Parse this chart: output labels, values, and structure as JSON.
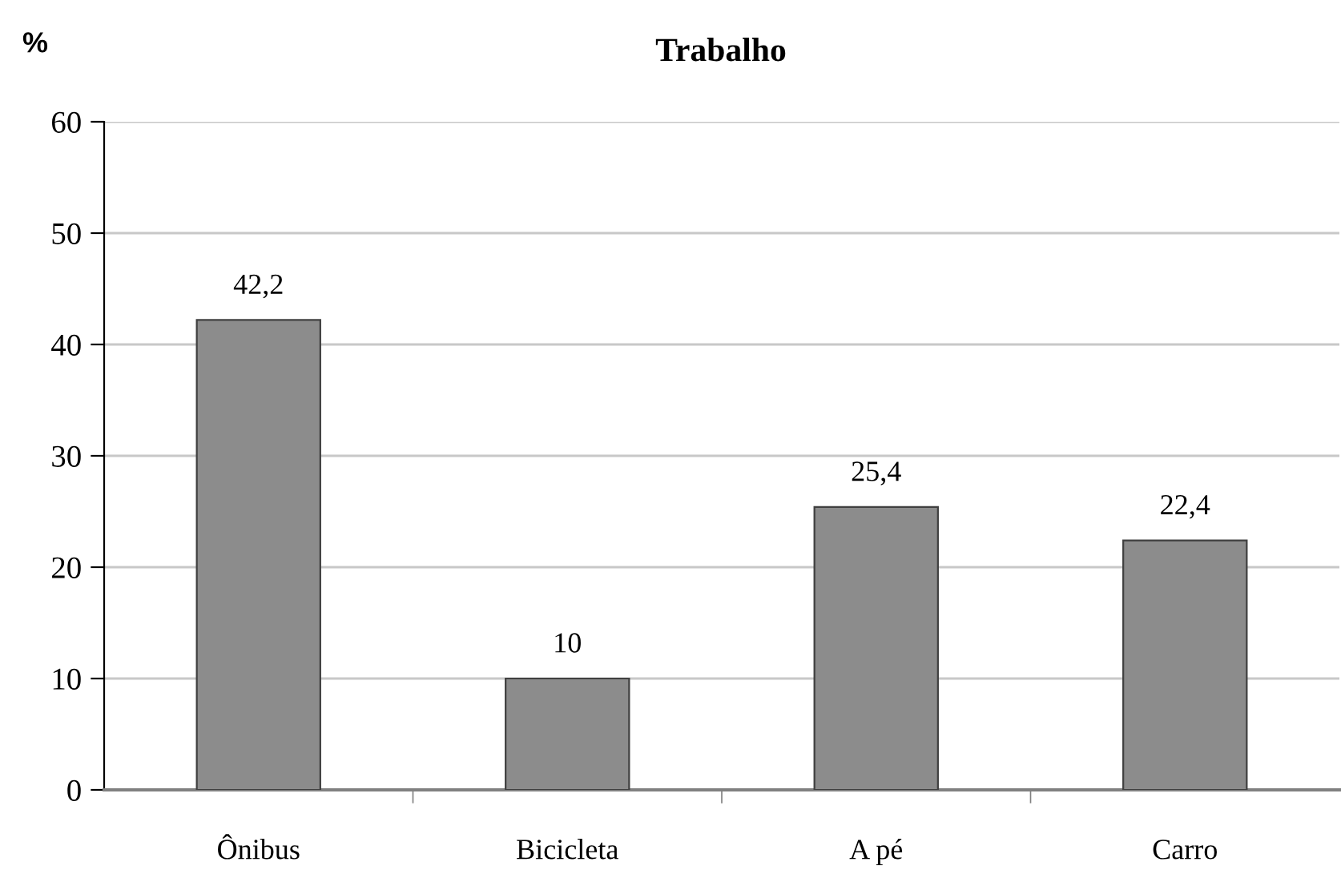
{
  "chart_data": {
    "type": "bar",
    "title": "Trabalho",
    "ylabel": "%",
    "categories": [
      "Ônibus",
      "Bicicleta",
      "A pé",
      "Carro"
    ],
    "values": [
      42.2,
      10,
      25.4,
      22.4
    ],
    "color": "#8c8c8c",
    "value_labels": [
      "42,2",
      "10",
      "25,4",
      "22,4"
    ],
    "ylim": [
      0,
      60
    ],
    "yticks": [
      0,
      10,
      20,
      30,
      40,
      50,
      60
    ],
    "grid": "y",
    "legend": false
  }
}
